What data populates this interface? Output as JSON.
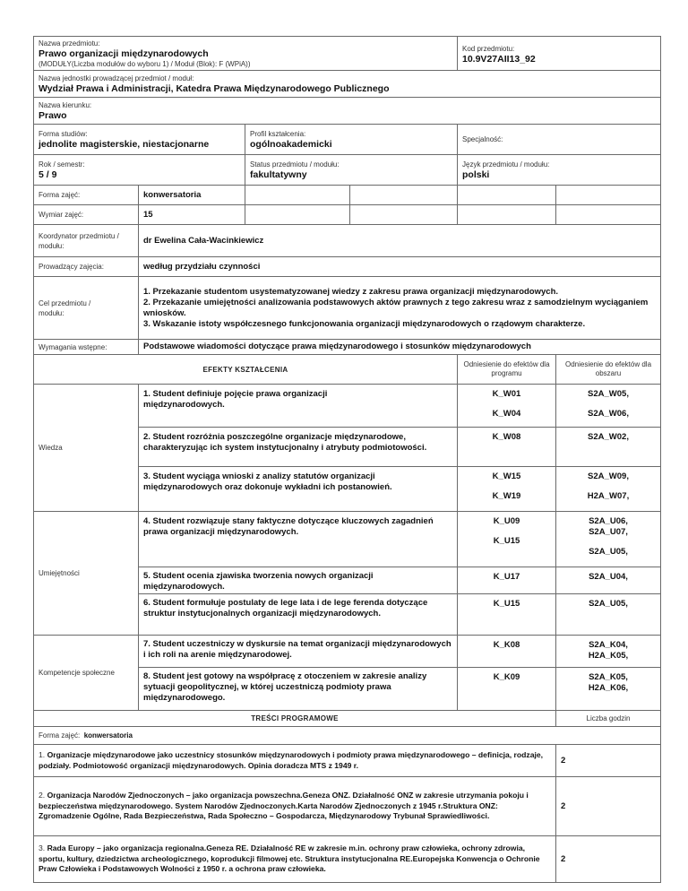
{
  "header": {
    "name_label": "Nazwa przedmiotu:",
    "name_value": "Prawo organizacji międzynarodowych",
    "name_sub": "(MODUŁY(Liczba modułów do wyboru 1) / Moduł (Blok): F (WPiA))",
    "code_label": "Kod przedmiotu:",
    "code_value": "10.9V27AII13_92",
    "unit_label": "Nazwa jednostki prowadzącej przedmiot / moduł:",
    "unit_value": "Wydział Prawa i Administracji, Katedra Prawa Międzynarodowego Publicznego",
    "field_label": "Nazwa kierunku:",
    "field_value": "Prawo",
    "study_form_label": "Forma studiów:",
    "study_form_value": "jednolite magisterskie, niestacjonarne",
    "profile_label": "Profil kształcenia:",
    "profile_value": "ogólnoakademicki",
    "specialty_label": "Specjalność:",
    "year_label": "Rok / semestr:",
    "year_value": "5 / 9",
    "status_label": "Status przedmiotu / modułu:",
    "status_value": "fakultatywny",
    "language_label": "Język przedmiotu / modułu:",
    "language_value": "polski"
  },
  "details": {
    "class_form_label": "Forma zajęć:",
    "class_form_value": "konwersatoria",
    "hours_label": "Wymiar zajęć:",
    "hours_value": "15",
    "coordinator_label": "Koordynator przedmiotu / modułu:",
    "coordinator_value": "dr Ewelina Cała-Wacinkiewicz",
    "teacher_label": "Prowadzący zajęcia:",
    "teacher_value": "według przydziału czynności",
    "goal_label": "Cel przedmiotu / modułu:",
    "goal_lines": [
      "1. Przekazanie studentom usystematyzowanej wiedzy z zakresu prawa organizacji międzynarodowych.",
      "2. Przekazanie umiejętności analizowania podstawowych aktów prawnych z tego zakresu wraz z samodzielnym wyciąganiem wniosków.",
      "3. Wskazanie istoty współczesnego funkcjonowania organizacji międzynarodowych o rządowym charakterze."
    ],
    "requirements_label": "Wymagania wstępne:",
    "requirements_value": "Podstawowe wiadomości dotyczące prawa międzynarodowego i stosunków międzynarodowych"
  },
  "outcomes": {
    "title": "EFEKTY KSZTAŁCENIA",
    "program_ref_header": "Odniesienie do efektów dla programu",
    "area_ref_header": "Odniesienie do efektów dla obszaru",
    "categories": [
      "Wiedza",
      "Umiejętności",
      "Kompetencje społeczne"
    ],
    "items": [
      {
        "text": "1. Student definiuje pojęcie prawa organizacji międzynarodowych.",
        "program": [
          "K_W01",
          "K_W04"
        ],
        "area": [
          "S2A_W05,",
          "S2A_W06,"
        ]
      },
      {
        "text": "2. Student rozróżnia poszczególne organizacje międzynarodowe, charakteryzując ich system instytucjonalny i atrybuty podmiotowości.",
        "program": [
          "K_W08"
        ],
        "area": [
          "S2A_W02,"
        ]
      },
      {
        "text": "3. Student wyciąga wnioski z analizy statutów organizacji międzynarodowych oraz dokonuje wykładni ich postanowień.",
        "program": [
          "K_W15",
          "K_W19"
        ],
        "area": [
          "S2A_W09,",
          "H2A_W07,"
        ]
      },
      {
        "text": "4. Student rozwiązuje stany faktyczne dotyczące kluczowych zagadnień prawa organizacji międzynarodowych.",
        "program": [
          "K_U09",
          "K_U15"
        ],
        "area": [
          "S2A_U06,",
          "S2A_U07,",
          "S2A_U05,"
        ]
      },
      {
        "text": "5. Student ocenia zjawiska tworzenia nowych organizacji międzynarodowych.",
        "program": [
          "K_U17"
        ],
        "area": [
          "S2A_U04,"
        ]
      },
      {
        "text": "6. Student formułuje postulaty de lege lata i de lege ferenda dotyczące struktur instytucjonalnych organizacji międzynarodowych.",
        "program": [
          "K_U15"
        ],
        "area": [
          "S2A_U05,"
        ]
      },
      {
        "text": "7. Student uczestniczy w dyskursie na temat organizacji międzynarodowych i ich roli na arenie międzynarodowej.",
        "program": [
          "K_K08"
        ],
        "area": [
          "S2A_K04,",
          "H2A_K05,"
        ]
      },
      {
        "text": "8. Student jest gotowy na współpracę z otoczeniem w zakresie analizy sytuacji geopolitycznej, w której uczestniczą podmioty prawa międzynarodowego.",
        "program": [
          "K_K09"
        ],
        "area": [
          "S2A_K05,",
          "H2A_K06,"
        ]
      }
    ]
  },
  "program": {
    "title": "TREŚCI PROGRAMOWE",
    "hours_header": "Liczba godzin",
    "form_label": "Forma zajęć:",
    "form_value": "konwersatoria",
    "items": [
      {
        "num": "1.",
        "text": "Organizacje międzynarodowe jako uczestnicy stosunków międzynarodowych i podmioty prawa międzynarodowego – definicja, rodzaje, podziały. Podmiotowość organizacji międzynarodowych. Opinia doradcza MTS z 1949 r.",
        "hours": "2"
      },
      {
        "num": "2.",
        "text": "Organizacja Narodów Zjednoczonych – jako organizacja powszechna.Geneza ONZ. Działalność ONZ w zakresie utrzymania pokoju i bezpieczeństwa międzynarodowego. System Narodów Zjednoczonych.Karta Narodów Zjednoczonych z 1945 r.Struktura ONZ: Zgromadzenie Ogólne, Rada Bezpieczeństwa, Rada Społeczno – Gospodarcza, Międzynarodowy Trybunał Sprawiedliwości.",
        "hours": "2"
      },
      {
        "num": "3.",
        "text": "Rada Europy – jako organizacja regionalna.Geneza RE. Działalność RE w zakresie m.in. ochrony praw człowieka, ochrony zdrowia, sportu, kultury, dziedzictwa archeologicznego, koprodukcji filmowej etc. Struktura instytucjonalna RE.Europejska Konwencja o Ochronie Praw Człowieka i Podstawowych Wolności z 1950 r. a ochrona praw człowieka.",
        "hours": "2"
      }
    ]
  }
}
